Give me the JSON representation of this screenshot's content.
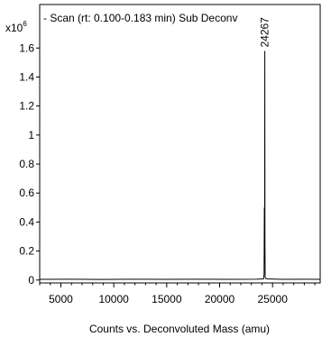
{
  "chart_data": {
    "type": "line",
    "title": "- Scan (rt: 0.100-0.183 min)  Sub Deconv",
    "xlabel": "Counts vs. Deconvoluted Mass (amu)",
    "y_multiplier_base": "x10",
    "y_multiplier_exp": "6",
    "xlim": [
      3000,
      29500
    ],
    "ylim": [
      -0.02,
      1.9
    ],
    "x_ticks": [
      5000,
      10000,
      15000,
      20000,
      25000
    ],
    "x_tick_labels": [
      "5000",
      "10000",
      "15000",
      "20000",
      "25000"
    ],
    "y_ticks": [
      0,
      0.2,
      0.4,
      0.6,
      0.8,
      1,
      1.2,
      1.4,
      1.6
    ],
    "y_tick_labels": [
      "0",
      "0.2",
      "0.4",
      "0.6",
      "0.8",
      "1",
      "1.2",
      "1.4",
      "1.6"
    ],
    "grid": false,
    "series": [
      {
        "color": "#000000",
        "points": [
          [
            3000,
            0.005
          ],
          [
            6000,
            0.006
          ],
          [
            9000,
            0.004
          ],
          [
            12000,
            0.006
          ],
          [
            15000,
            0.005
          ],
          [
            18000,
            0.006
          ],
          [
            21000,
            0.005
          ],
          [
            23500,
            0.006
          ],
          [
            24150,
            0.008
          ],
          [
            24200,
            0.04
          ],
          [
            24225,
            0.5
          ],
          [
            24240,
            0.12
          ],
          [
            24255,
            0.4
          ],
          [
            24267,
            1.58
          ],
          [
            24280,
            0.3
          ],
          [
            24300,
            0.02
          ],
          [
            24400,
            0.008
          ],
          [
            26000,
            0.005
          ],
          [
            28000,
            0.006
          ],
          [
            29500,
            0.005
          ]
        ]
      }
    ],
    "peak_label": {
      "x": 24267,
      "y": 1.58,
      "text": "24267"
    }
  }
}
